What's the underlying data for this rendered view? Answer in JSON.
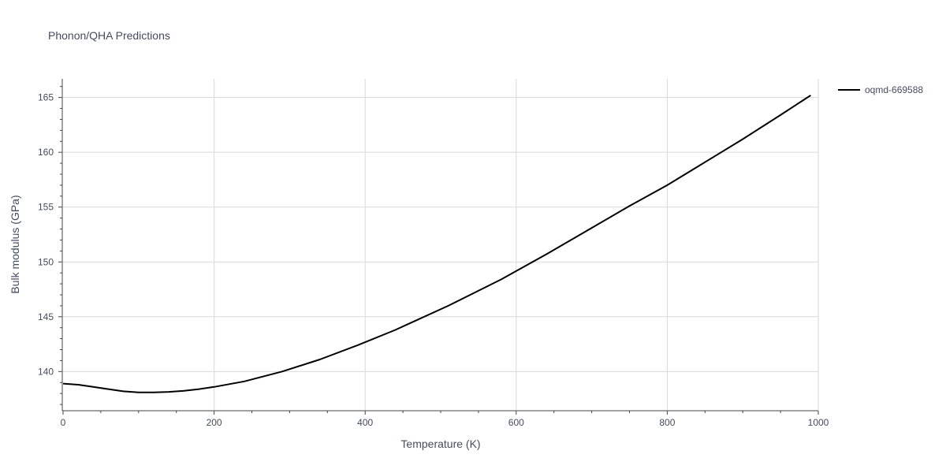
{
  "chart_data": {
    "type": "line",
    "title": "Phonon/QHA Predictions",
    "xlabel": "Temperature (K)",
    "ylabel": "Bulk modulus (GPa)",
    "xlim": [
      0,
      1000
    ],
    "ylim": [
      136.5,
      166.7
    ],
    "x_ticks": [
      0,
      200,
      400,
      600,
      800,
      1000
    ],
    "x_tick_labels": [
      "0",
      "200",
      "400",
      "600",
      "800",
      "1000"
    ],
    "y_ticks": [
      140,
      145,
      150,
      155,
      160,
      165
    ],
    "y_tick_labels": [
      "140",
      "145",
      "150",
      "155",
      "160",
      "165"
    ],
    "grid": true,
    "legend_position": "top-right",
    "series": [
      {
        "name": "oqmd-669588",
        "color": "#000000",
        "x": [
          0,
          20,
          40,
          60,
          80,
          100,
          120,
          140,
          160,
          180,
          200,
          240,
          290,
          340,
          390,
          440,
          510,
          580,
          640,
          700,
          750,
          800,
          850,
          900,
          950,
          990
        ],
        "y": [
          138.9,
          138.8,
          138.6,
          138.4,
          138.2,
          138.1,
          138.1,
          138.15,
          138.25,
          138.4,
          138.6,
          139.1,
          140.0,
          141.1,
          142.4,
          143.8,
          146.0,
          148.4,
          150.7,
          153.1,
          155.1,
          157.0,
          159.1,
          161.2,
          163.4,
          165.2
        ]
      }
    ]
  }
}
